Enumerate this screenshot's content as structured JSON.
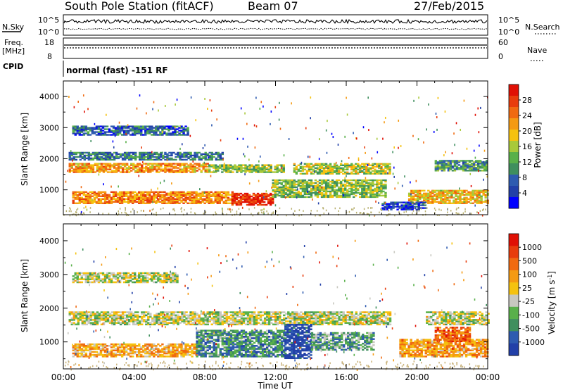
{
  "header": {
    "station": "South Pole Station (fitACF)",
    "beam": "Beam 07",
    "date": "27/Feb/2015"
  },
  "panels": {
    "nsky": {
      "label": "N.Sky",
      "tick_top": "10^5",
      "tick_bottom": "10^0",
      "right_tick_top": "10^5",
      "right_tick_bottom": "10^0",
      "right_label": "N.Search"
    },
    "freq": {
      "label_line1": "Freq.",
      "label_line2": "[MHz]",
      "tick_top": "18",
      "tick_bottom": "8",
      "right_tick_top": "60",
      "right_tick_bottom": "0",
      "right_label": "Nave"
    },
    "cpid": {
      "label": "CPID",
      "text": "normal (fast) -151 RF"
    }
  },
  "colors": {
    "power": [
      "#0000ff",
      "#2240a8",
      "#2e5bb0",
      "#3f8f5e",
      "#59b04a",
      "#a8c93a",
      "#f5c20f",
      "#f59a12",
      "#f06a10",
      "#e83c0c",
      "#e01005"
    ],
    "velocity": [
      "#2240a8",
      "#2e5bb0",
      "#3f8f5e",
      "#59b04a",
      "#c8c8c0",
      "#f5c20f",
      "#f59a12",
      "#f06a10",
      "#e83c0c",
      "#e01005"
    ]
  },
  "chart_data": [
    {
      "type": "heatmap",
      "name": "power",
      "xlabel": "",
      "ylabel": "Slant Range [km]",
      "ylim": [
        200,
        4500
      ],
      "yticks": [
        1000,
        2000,
        3000,
        4000
      ],
      "xlim_hours": [
        0,
        24
      ],
      "colorbar": {
        "label": "Power [dB]",
        "ticks": [
          "4",
          "8",
          "12",
          "16",
          "20",
          "24",
          "28"
        ]
      },
      "bands": [
        {
          "t0": 0.3,
          "t1": 8.2,
          "r0": 1550,
          "r1": 1850,
          "level": 0.68
        },
        {
          "t0": 8.2,
          "t1": 12.5,
          "r0": 1550,
          "r1": 1800,
          "level": 0.45
        },
        {
          "t0": 13.0,
          "t1": 18.5,
          "r0": 1500,
          "r1": 1850,
          "level": 0.5
        },
        {
          "t0": 0.5,
          "t1": 9.5,
          "r0": 550,
          "r1": 950,
          "level": 0.72
        },
        {
          "t0": 9.5,
          "t1": 11.8,
          "r0": 500,
          "r1": 900,
          "level": 0.93
        },
        {
          "t0": 11.8,
          "t1": 18.2,
          "r0": 750,
          "r1": 1300,
          "level": 0.45
        },
        {
          "t0": 19.5,
          "t1": 24.0,
          "r0": 550,
          "r1": 1000,
          "level": 0.62
        },
        {
          "t0": 0.5,
          "t1": 7.0,
          "r0": 2750,
          "r1": 3050,
          "level": 0.22
        },
        {
          "t0": 0.3,
          "t1": 9.0,
          "r0": 1950,
          "r1": 2200,
          "level": 0.28
        },
        {
          "t0": 18.0,
          "t1": 20.5,
          "r0": 350,
          "r1": 600,
          "level": 0.15
        },
        {
          "t0": 21.0,
          "t1": 24.0,
          "r0": 1600,
          "r1": 1950,
          "level": 0.35
        }
      ]
    },
    {
      "type": "heatmap",
      "name": "velocity",
      "xlabel": "Time UT",
      "ylabel": "Slant Range [km]",
      "ylim": [
        200,
        4500
      ],
      "yticks": [
        1000,
        2000,
        3000,
        4000
      ],
      "xticks": [
        "00:00",
        "04:00",
        "08:00",
        "12:00",
        "16:00",
        "20:00",
        "00:00"
      ],
      "xlim_hours": [
        0,
        24
      ],
      "colorbar": {
        "label": "Velocity [m s^-1]",
        "ticks": [
          "1000",
          "500",
          "100",
          "25",
          "-25",
          "-100",
          "-500",
          "-1000"
        ]
      },
      "bands": [
        {
          "t0": 0.3,
          "t1": 18.5,
          "r0": 1500,
          "r1": 1900,
          "level": 0.45
        },
        {
          "t0": 0.5,
          "t1": 7.5,
          "r0": 550,
          "r1": 950,
          "level": 0.62
        },
        {
          "t0": 7.5,
          "t1": 12.5,
          "r0": 550,
          "r1": 1350,
          "level": 0.25
        },
        {
          "t0": 12.5,
          "t1": 14.0,
          "r0": 500,
          "r1": 1500,
          "level": 0.05
        },
        {
          "t0": 14.0,
          "t1": 17.5,
          "r0": 750,
          "r1": 1250,
          "level": 0.3
        },
        {
          "t0": 19.0,
          "t1": 24.0,
          "r0": 550,
          "r1": 1050,
          "level": 0.65
        },
        {
          "t0": 21.0,
          "t1": 23.0,
          "r0": 1000,
          "r1": 1450,
          "level": 0.75
        },
        {
          "t0": 20.5,
          "t1": 24.0,
          "r0": 1500,
          "r1": 1900,
          "level": 0.45
        },
        {
          "t0": 0.5,
          "t1": 6.5,
          "r0": 2750,
          "r1": 3050,
          "level": 0.45
        }
      ]
    }
  ]
}
